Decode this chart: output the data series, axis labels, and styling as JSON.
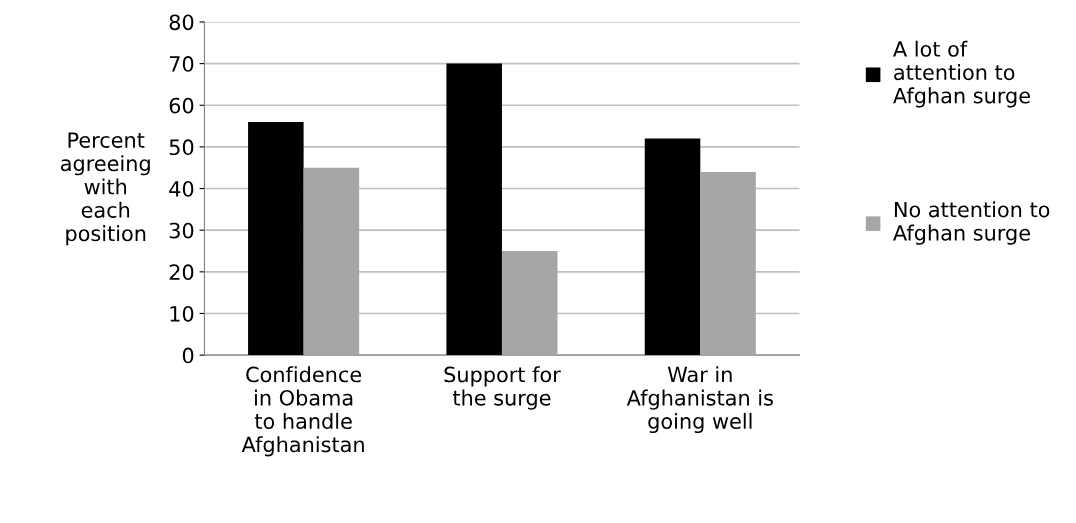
{
  "chart_data": {
    "type": "bar",
    "ylabel": "Percent\nagreeing\nwith\neach\nposition",
    "categories": [
      "Confidence\nin Obama\nto handle\nAfghanistan",
      "Support for\nthe surge",
      "War in\nAfghanistan is\ngoing well"
    ],
    "series": [
      {
        "name": "A lot of\nattention to\nAfghan surge",
        "color": "#000000",
        "values": [
          56,
          70,
          52
        ]
      },
      {
        "name": "No attention to\nAfghan surge",
        "color": "#a6a6a6",
        "values": [
          45,
          25,
          44
        ]
      }
    ],
    "ylim": [
      0,
      80
    ],
    "yticks": [
      0,
      10,
      20,
      30,
      40,
      50,
      60,
      70,
      80
    ],
    "grid": "y",
    "legend": "right"
  }
}
